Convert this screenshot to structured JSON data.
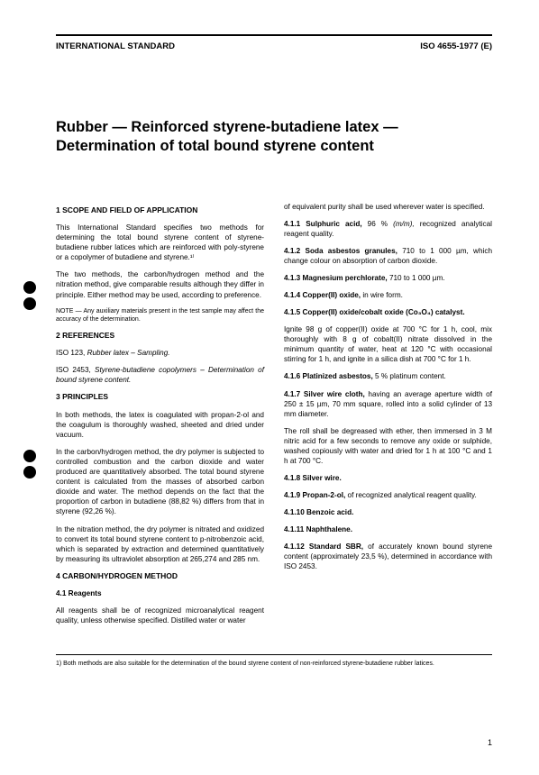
{
  "header": {
    "left": "INTERNATIONAL STANDARD",
    "right": "ISO 4655-1977 (E)"
  },
  "title": "Rubber — Reinforced styrene-butadiene latex — Determination of total bound styrene content",
  "s1": {
    "h": "1  SCOPE AND FIELD OF APPLICATION",
    "p1": "This International Standard specifies two methods for determining the total bound styrene content of styrene-butadiene rubber latices which are reinforced with poly-styrene or a copolymer of butadiene and styrene.¹⁾",
    "p2": "The two methods, the carbon/hydrogen method and the nitration method, give comparable results although they differ in principle. Either method may be used, according to preference.",
    "note": "NOTE — Any auxiliary materials present in the test sample may affect the accuracy of the determination."
  },
  "s2": {
    "h": "2  REFERENCES",
    "p1a": "ISO 123, ",
    "p1b": "Rubber latex – Sampling.",
    "p2a": "ISO 2453, ",
    "p2b": "Styrene-butadiene copolymers – Determination of bound styrene content."
  },
  "s3": {
    "h": "3  PRINCIPLES",
    "p1": "In both methods, the latex is coagulated with propan-2-ol and the coagulum is thoroughly washed, sheeted and dried under vacuum.",
    "p2": "In the carbon/hydrogen method, the dry polymer is subjected to controlled combustion and the carbon dioxide and water produced are quantitatively absorbed. The total bound styrene content is calculated from the masses of absorbed carbon dioxide and water. The method depends on the fact that the proportion of carbon in butadiene (88,82 %) differs from that in styrene (92,26 %).",
    "p3": "In the nitration method, the dry polymer is nitrated and oxidized to convert its total bound styrene content to p-nitrobenzoic acid, which is separated by extraction and determined quantitatively by measuring its ultraviolet absorption at 265,274 and 285 nm."
  },
  "s4": {
    "h": "4  CARBON/HYDROGEN METHOD",
    "h41": "4.1  Reagents",
    "p41": "All reagents shall be of recognized microanalytical reagent quality, unless otherwise specified. Distilled water or water"
  },
  "right": {
    "p0": "of equivalent purity shall be used wherever water is specified.",
    "r411a": "4.1.1  Sulphuric acid,",
    "r411b": " 96 % ",
    "r411c": "(m/m),",
    "r411d": " recognized analytical reagent quality.",
    "r412a": "4.1.2  Soda asbestos granules,",
    "r412b": " 710 to 1 000 µm, which change colour on absorption of carbon dioxide.",
    "r413a": "4.1.3  Magnesium perchlorate,",
    "r413b": " 710 to 1 000 µm.",
    "r414a": "4.1.4  Copper(II) oxide,",
    "r414b": " in wire form.",
    "r415a": "4.1.5  Copper(II) oxide/cobalt oxide (Co₃O₄) catalyst.",
    "r415p": "Ignite 98 g of copper(II) oxide at 700 °C for 1 h, cool, mix thoroughly with 8 g of cobalt(II) nitrate dissolved in the minimum quantity of water, heat at 120 °C with occasional stirring for 1 h, and ignite in a silica dish at 700 °C for 1 h.",
    "r416a": "4.1.6  Platinized asbestos,",
    "r416b": " 5 % platinum content.",
    "r417a": "4.1.7  Silver wire cloth,",
    "r417b": " having an average aperture width of 250 ± 15 µm, 70 mm square, rolled into a solid cylinder of 13 mm diameter.",
    "r417p": "The roll shall be degreased with ether, then immersed in 3 M nitric acid for a few seconds to remove any oxide or sulphide, washed copiously with water and dried for 1 h at 100 °C and 1 h at 700 °C.",
    "r418": "4.1.8  Silver wire.",
    "r419a": "4.1.9  Propan-2-ol,",
    "r419b": " of recognized analytical reagent quality.",
    "r4110": "4.1.10  Benzoic acid.",
    "r4111": "4.1.11  Naphthalene.",
    "r4112a": "4.1.12  Standard SBR,",
    "r4112b": " of accurately known bound styrene content (approximately 23,5 %), determined in accordance with ISO 2453."
  },
  "footnote": "1)  Both methods are also suitable for the determination of the bound styrene content of non-reinforced styrene-butadiene rubber latices.",
  "pagenum": "1",
  "bulletPositions": {
    "b1": 312,
    "b2": 330,
    "b3": 499,
    "b4": 517
  }
}
